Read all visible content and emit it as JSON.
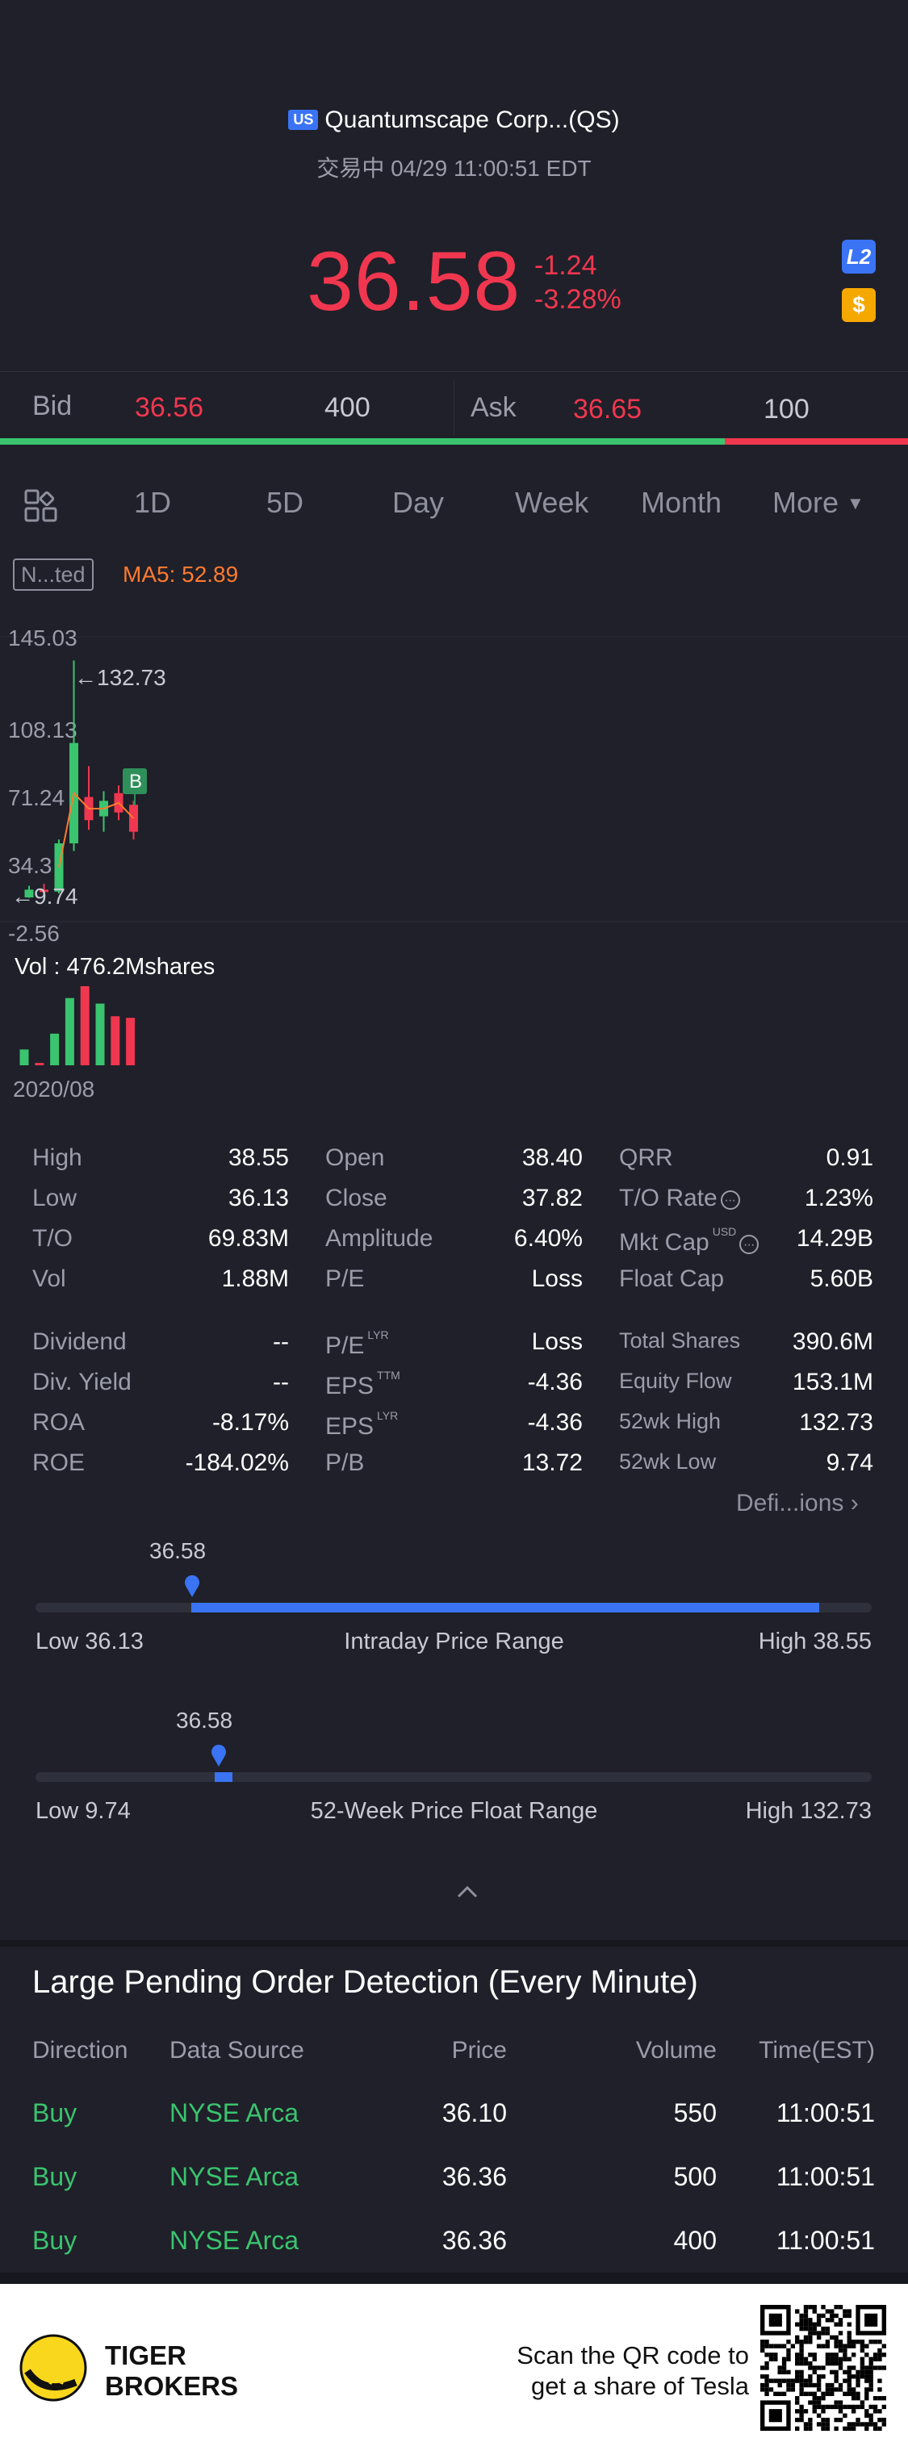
{
  "header": {
    "market_badge": "US",
    "title": "Quantumscape Corp...(QS)",
    "status": "交易中 04/29 11:00:51 EDT",
    "price": "36.58",
    "change": "-1.24",
    "change_pct": "-3.28%",
    "l2_badge": "L2",
    "usd_badge": "$"
  },
  "bidask": {
    "bid_label": "Bid",
    "bid_price": "36.56",
    "bid_size": "400",
    "ask_label": "Ask",
    "ask_price": "36.65",
    "ask_size": "100",
    "bid_fraction": 0.8
  },
  "tabs": {
    "items": [
      "1D",
      "5D",
      "Day",
      "Week",
      "Month",
      "More"
    ],
    "active": "Month"
  },
  "chart": {
    "indicator_label": "N...ted",
    "ma_label": "MA5: 52.89",
    "y_labels": [
      "145.03",
      "108.13",
      "71.24",
      "34.3",
      "-2.56"
    ],
    "max_label": "132.73",
    "min_label": "9.74",
    "buy_marker": "B",
    "vol_label": "Vol",
    "vol_value": ": 476.2Mshares",
    "x_label": "2020/08"
  },
  "chart_data": {
    "type": "candlestick",
    "ylim": [
      -2.56,
      145.03
    ],
    "candles": [
      {
        "o": 10,
        "h": 16,
        "l": 9.74,
        "c": 14,
        "dir": "up"
      },
      {
        "o": 14,
        "h": 17,
        "l": 12,
        "c": 13,
        "dir": "down"
      },
      {
        "o": 13,
        "h": 40,
        "l": 12,
        "c": 38,
        "dir": "up"
      },
      {
        "o": 38,
        "h": 132.73,
        "l": 34,
        "c": 90,
        "dir": "up"
      },
      {
        "o": 62,
        "h": 78,
        "l": 45,
        "c": 50,
        "dir": "down"
      },
      {
        "o": 52,
        "h": 65,
        "l": 44,
        "c": 60,
        "dir": "up"
      },
      {
        "o": 64,
        "h": 68,
        "l": 50,
        "c": 54,
        "dir": "down"
      },
      {
        "o": 58,
        "h": 60,
        "l": 40,
        "c": 44,
        "dir": "down"
      }
    ],
    "volumes": [
      {
        "v": 20,
        "dir": "up"
      },
      {
        "v": 3,
        "dir": "down"
      },
      {
        "v": 40,
        "dir": "up"
      },
      {
        "v": 85,
        "dir": "up"
      },
      {
        "v": 100,
        "dir": "down"
      },
      {
        "v": 78,
        "dir": "up"
      },
      {
        "v": 62,
        "dir": "down"
      },
      {
        "v": 60,
        "dir": "down"
      }
    ]
  },
  "stats": {
    "col1": [
      {
        "label": "High",
        "value": "38.55"
      },
      {
        "label": "Low",
        "value": "36.13"
      },
      {
        "label": "T/O",
        "value": "69.83M"
      },
      {
        "label": "Vol",
        "value": "1.88M"
      },
      {
        "label": "Dividend",
        "value": "--"
      },
      {
        "label": "Div. Yield",
        "value": "--"
      },
      {
        "label": "ROA",
        "value": "-8.17%"
      },
      {
        "label": "ROE",
        "value": "-184.02%"
      }
    ],
    "col2": [
      {
        "label": "Open",
        "value": "38.40",
        "sup": ""
      },
      {
        "label": "Close",
        "value": "37.82",
        "sup": ""
      },
      {
        "label": "Amplitude",
        "value": "6.40%",
        "sup": ""
      },
      {
        "label": "P/E",
        "value": "Loss",
        "sup": ""
      },
      {
        "label": "P/E",
        "value": "Loss",
        "sup": "LYR"
      },
      {
        "label": "EPS",
        "value": "-4.36",
        "sup": "TTM"
      },
      {
        "label": "EPS",
        "value": "-4.36",
        "sup": "LYR"
      },
      {
        "label": "P/B",
        "value": "13.72",
        "sup": ""
      }
    ],
    "col3": [
      {
        "label": "QRR",
        "value": "0.91",
        "sup": ""
      },
      {
        "label": "T/O Rate",
        "value": "1.23%",
        "sup": ""
      },
      {
        "label": "Mkt Cap",
        "value": "14.29B",
        "sup": "USD"
      },
      {
        "label": "Float Cap",
        "value": "5.60B",
        "sup": ""
      },
      {
        "label": "Total Shares",
        "value": "390.6M",
        "sup": ""
      },
      {
        "label": "Equity Flow",
        "value": "153.1M",
        "sup": ""
      },
      {
        "label": "52wk High",
        "value": "132.73",
        "sup": ""
      },
      {
        "label": "52wk Low",
        "value": "9.74",
        "sup": ""
      }
    ],
    "definitions_link": "Defi...ions"
  },
  "ranges": {
    "intraday": {
      "current": "36.58",
      "low": "Low 36.13",
      "title": "Intraday Price Range",
      "high": "High 38.55",
      "fraction": 0.186,
      "low_value": 36.13,
      "high_value": 38.55
    },
    "week52": {
      "current": "36.58",
      "low": "Low 9.74",
      "title": "52-Week Price Float Range",
      "high": "High 132.73",
      "fraction": 0.218,
      "low_value": 9.74,
      "high_value": 132.73
    }
  },
  "pending": {
    "title": "Large Pending Order Detection (Every Minute)",
    "headers": [
      "Direction",
      "Data Source",
      "Price",
      "Volume",
      "Time(EST)"
    ],
    "rows": [
      {
        "direction": "Buy",
        "source": "NYSE Arca",
        "price": "36.10",
        "volume": "550",
        "time": "11:00:51"
      },
      {
        "direction": "Buy",
        "source": "NYSE Arca",
        "price": "36.36",
        "volume": "500",
        "time": "11:00:51"
      },
      {
        "direction": "Buy",
        "source": "NYSE Arca",
        "price": "36.36",
        "volume": "400",
        "time": "11:00:51"
      }
    ]
  },
  "footer": {
    "brand_line1": "TIGER",
    "brand_line2": "BROKERS",
    "cta_line1": "Scan the QR code to",
    "cta_line2": "get a share of Tesla"
  },
  "colors": {
    "up": "#3ac46f",
    "down": "#f0374f",
    "accent": "#3a74f5",
    "active_tab": "#f5c100",
    "background": "#1f2029"
  }
}
